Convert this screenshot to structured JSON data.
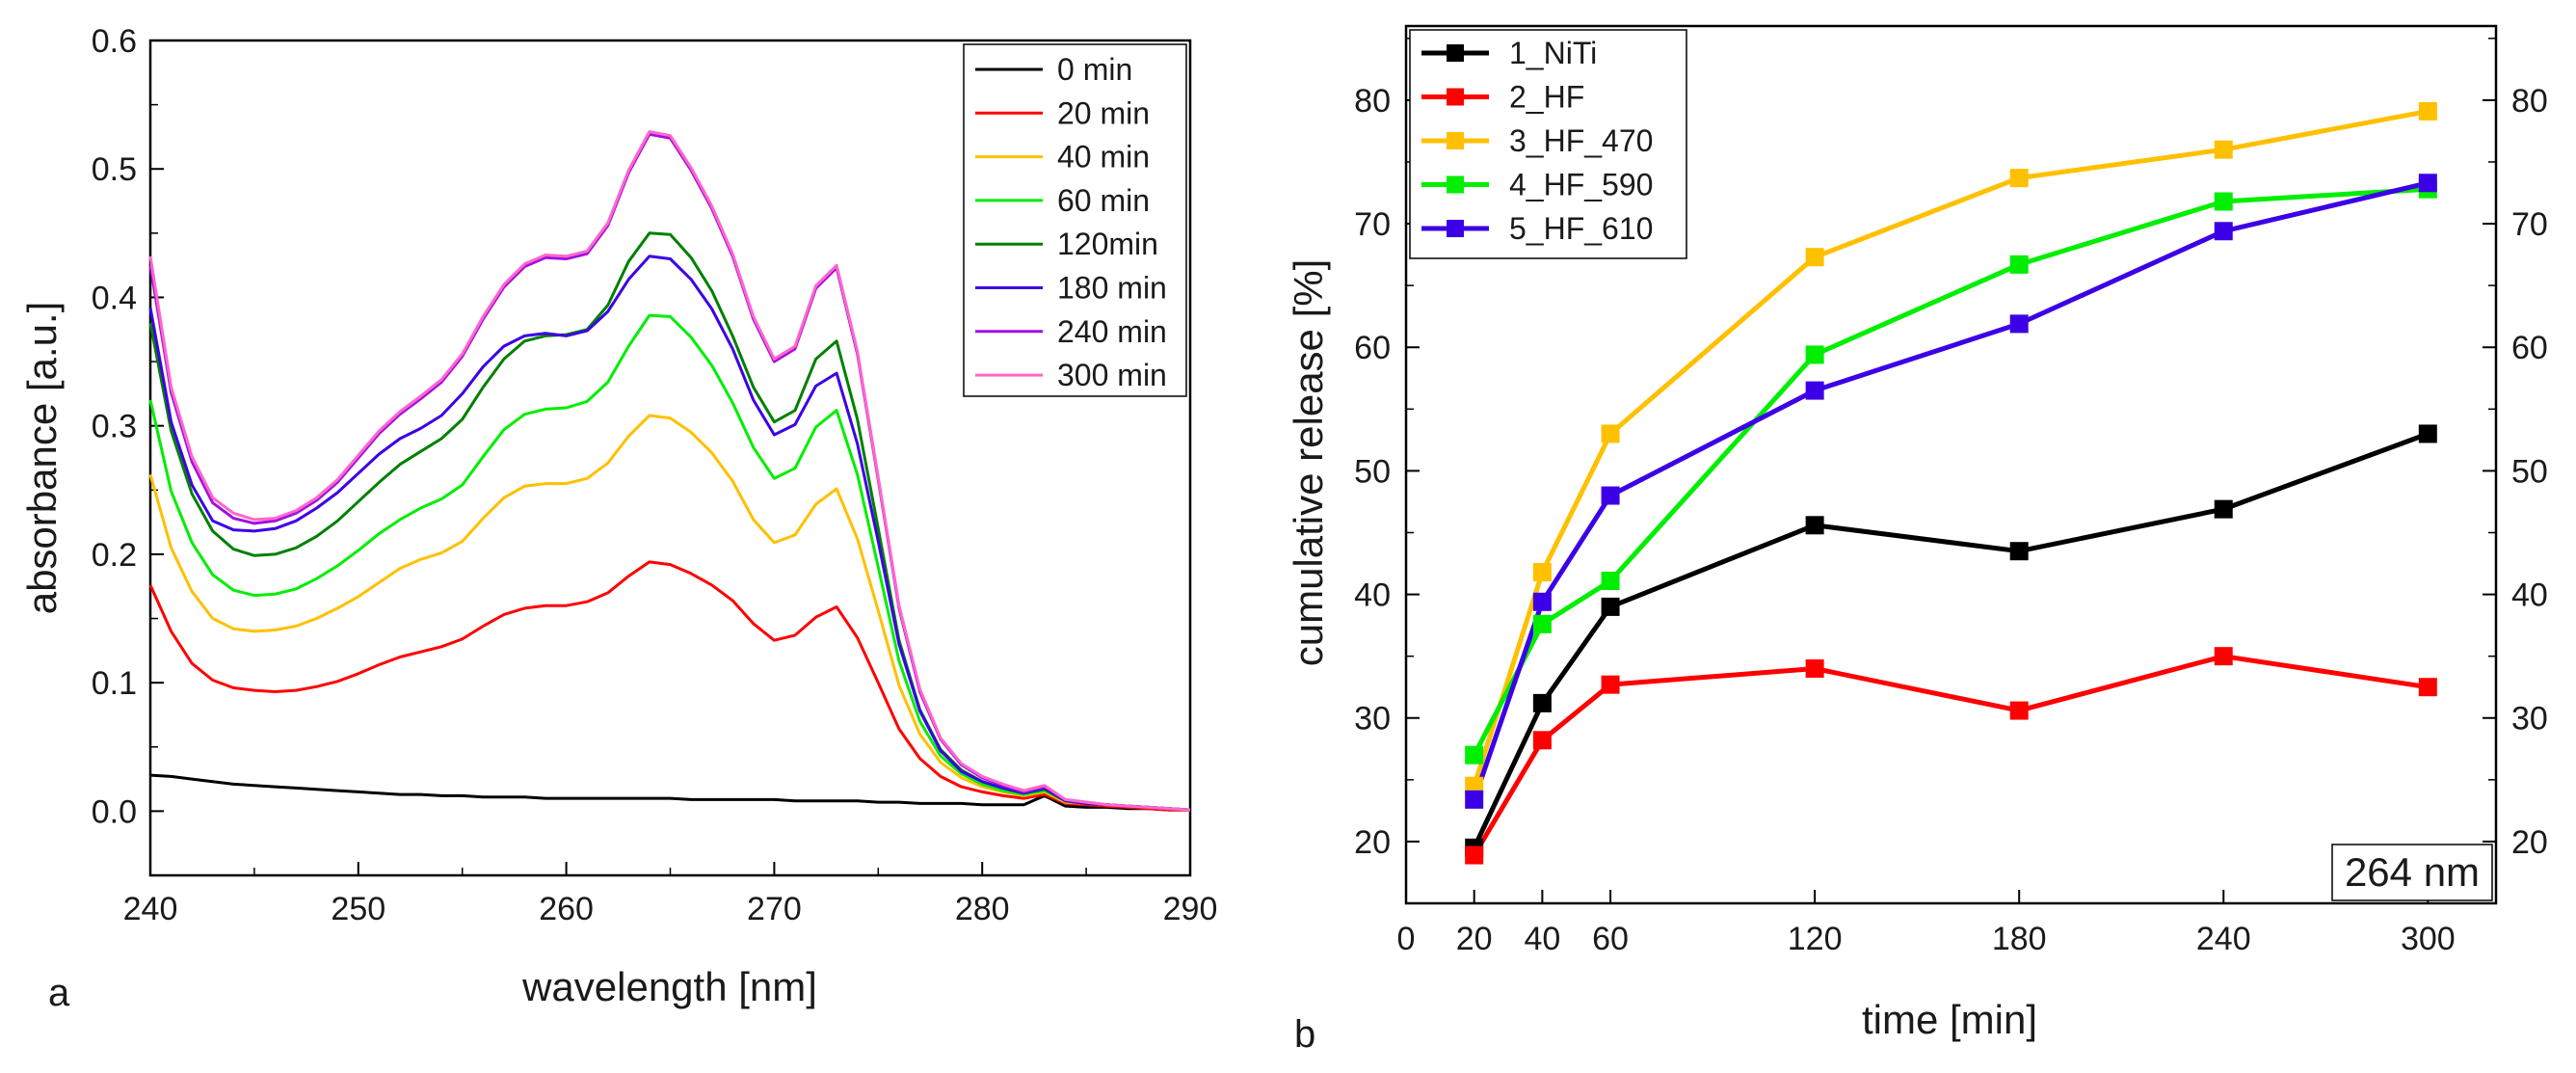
{
  "figure_panels": [
    "a",
    "b"
  ],
  "chart_data": [
    {
      "type": "line",
      "panel_label": "a",
      "title": "",
      "xlabel": "wavelength [nm]",
      "ylabel": "absorbance [a.u.]",
      "xlim": [
        240,
        290
      ],
      "ylim": [
        -0.05,
        0.6
      ],
      "xticks": [
        240,
        250,
        260,
        270,
        280,
        290
      ],
      "yticks": [
        0.0,
        0.1,
        0.2,
        0.3,
        0.4,
        0.5,
        0.6
      ],
      "ytick_labels": [
        "0.0",
        "0.1",
        "0.2",
        "0.3",
        "0.4",
        "0.5",
        "0.6"
      ],
      "grid": false,
      "legend_position": "top-right",
      "shared_x": [
        240,
        241,
        242,
        243,
        244,
        245,
        246,
        247,
        248,
        249,
        250,
        251,
        252,
        253,
        254,
        255,
        256,
        257,
        258,
        259,
        260,
        261,
        262,
        263,
        264,
        265,
        266,
        267,
        268,
        269,
        270,
        271,
        272,
        273,
        274,
        275,
        276,
        277,
        278,
        279,
        280,
        281,
        282,
        283,
        284,
        285,
        286,
        287,
        288,
        289,
        290
      ],
      "series": [
        {
          "name": "0 min",
          "color": "#000000",
          "values": [
            0.028,
            0.027,
            0.025,
            0.023,
            0.021,
            0.02,
            0.019,
            0.018,
            0.017,
            0.016,
            0.015,
            0.014,
            0.013,
            0.013,
            0.012,
            0.012,
            0.011,
            0.011,
            0.011,
            0.01,
            0.01,
            0.01,
            0.01,
            0.01,
            0.01,
            0.01,
            0.009,
            0.009,
            0.009,
            0.009,
            0.009,
            0.008,
            0.008,
            0.008,
            0.008,
            0.007,
            0.007,
            0.006,
            0.006,
            0.006,
            0.005,
            0.005,
            0.005,
            0.012,
            0.004,
            0.003,
            0.003,
            0.002,
            0.002,
            0.001,
            0.001
          ]
        },
        {
          "name": "20 min",
          "color": "#ff0000",
          "values": [
            0.176,
            0.14,
            0.115,
            0.102,
            0.096,
            0.094,
            0.093,
            0.094,
            0.097,
            0.101,
            0.107,
            0.114,
            0.12,
            0.124,
            0.128,
            0.134,
            0.144,
            0.153,
            0.158,
            0.16,
            0.16,
            0.163,
            0.17,
            0.183,
            0.194,
            0.192,
            0.185,
            0.176,
            0.164,
            0.146,
            0.133,
            0.137,
            0.151,
            0.159,
            0.135,
            0.1,
            0.064,
            0.041,
            0.027,
            0.019,
            0.015,
            0.012,
            0.01,
            0.013,
            0.006,
            0.005,
            0.004,
            0.003,
            0.002,
            0.001,
            0.001
          ]
        },
        {
          "name": "40 min",
          "color": "#ffc000",
          "values": [
            0.262,
            0.205,
            0.171,
            0.15,
            0.142,
            0.14,
            0.141,
            0.144,
            0.15,
            0.158,
            0.167,
            0.178,
            0.189,
            0.196,
            0.201,
            0.21,
            0.228,
            0.244,
            0.253,
            0.255,
            0.255,
            0.259,
            0.271,
            0.292,
            0.308,
            0.306,
            0.295,
            0.279,
            0.257,
            0.227,
            0.209,
            0.215,
            0.239,
            0.251,
            0.212,
            0.156,
            0.098,
            0.06,
            0.038,
            0.026,
            0.019,
            0.015,
            0.012,
            0.015,
            0.007,
            0.006,
            0.005,
            0.004,
            0.003,
            0.002,
            0.001
          ]
        },
        {
          "name": "60 min",
          "color": "#00ee00",
          "values": [
            0.32,
            0.249,
            0.209,
            0.184,
            0.172,
            0.168,
            0.169,
            0.173,
            0.181,
            0.191,
            0.203,
            0.216,
            0.227,
            0.236,
            0.243,
            0.254,
            0.276,
            0.297,
            0.309,
            0.313,
            0.314,
            0.319,
            0.334,
            0.362,
            0.386,
            0.385,
            0.369,
            0.347,
            0.318,
            0.283,
            0.259,
            0.267,
            0.299,
            0.312,
            0.262,
            0.19,
            0.117,
            0.07,
            0.043,
            0.029,
            0.021,
            0.016,
            0.013,
            0.016,
            0.008,
            0.006,
            0.005,
            0.004,
            0.003,
            0.002,
            0.001
          ]
        },
        {
          "name": "120min",
          "color": "#008000",
          "values": [
            0.38,
            0.296,
            0.247,
            0.218,
            0.204,
            0.199,
            0.2,
            0.205,
            0.214,
            0.226,
            0.241,
            0.256,
            0.27,
            0.28,
            0.29,
            0.305,
            0.33,
            0.352,
            0.366,
            0.37,
            0.371,
            0.375,
            0.394,
            0.428,
            0.45,
            0.449,
            0.431,
            0.405,
            0.37,
            0.33,
            0.303,
            0.312,
            0.352,
            0.366,
            0.305,
            0.22,
            0.133,
            0.079,
            0.048,
            0.032,
            0.023,
            0.018,
            0.014,
            0.017,
            0.008,
            0.006,
            0.005,
            0.004,
            0.003,
            0.002,
            0.001
          ]
        },
        {
          "name": "180 min",
          "color": "#3c00e6",
          "values": [
            0.392,
            0.303,
            0.254,
            0.226,
            0.219,
            0.218,
            0.22,
            0.226,
            0.236,
            0.248,
            0.263,
            0.278,
            0.29,
            0.298,
            0.308,
            0.325,
            0.346,
            0.362,
            0.37,
            0.372,
            0.37,
            0.374,
            0.389,
            0.414,
            0.432,
            0.43,
            0.414,
            0.391,
            0.36,
            0.32,
            0.293,
            0.301,
            0.331,
            0.341,
            0.286,
            0.21,
            0.13,
            0.078,
            0.047,
            0.031,
            0.023,
            0.018,
            0.014,
            0.018,
            0.008,
            0.006,
            0.005,
            0.004,
            0.003,
            0.002,
            0.001
          ]
        },
        {
          "name": "240 min",
          "color": "#a010e0",
          "values": [
            0.425,
            0.326,
            0.272,
            0.24,
            0.228,
            0.224,
            0.226,
            0.232,
            0.242,
            0.256,
            0.275,
            0.294,
            0.309,
            0.321,
            0.334,
            0.354,
            0.383,
            0.408,
            0.424,
            0.431,
            0.43,
            0.434,
            0.456,
            0.497,
            0.527,
            0.524,
            0.499,
            0.469,
            0.432,
            0.383,
            0.35,
            0.36,
            0.407,
            0.423,
            0.356,
            0.258,
            0.158,
            0.093,
            0.056,
            0.036,
            0.026,
            0.02,
            0.015,
            0.019,
            0.009,
            0.007,
            0.005,
            0.004,
            0.003,
            0.002,
            0.001
          ]
        },
        {
          "name": "300 min",
          "color": "#ff66cc",
          "values": [
            0.432,
            0.33,
            0.276,
            0.244,
            0.232,
            0.227,
            0.228,
            0.234,
            0.244,
            0.258,
            0.277,
            0.296,
            0.311,
            0.323,
            0.336,
            0.356,
            0.385,
            0.41,
            0.426,
            0.433,
            0.432,
            0.436,
            0.458,
            0.499,
            0.529,
            0.526,
            0.501,
            0.471,
            0.434,
            0.385,
            0.352,
            0.362,
            0.409,
            0.425,
            0.358,
            0.26,
            0.16,
            0.095,
            0.057,
            0.037,
            0.027,
            0.021,
            0.016,
            0.02,
            0.009,
            0.007,
            0.005,
            0.004,
            0.003,
            0.002,
            0.001
          ]
        }
      ]
    },
    {
      "type": "line",
      "panel_label": "b",
      "title": "",
      "xlabel": "time [min]",
      "ylabel": "cumulative release [%]",
      "xlim": [
        0,
        320
      ],
      "ylim": [
        15,
        86
      ],
      "xticks": [
        0,
        20,
        40,
        60,
        120,
        180,
        240,
        300
      ],
      "yticks": [
        20,
        30,
        40,
        50,
        60,
        70,
        80
      ],
      "right_yticks": [
        20,
        30,
        40,
        50,
        60,
        70,
        80
      ],
      "grid": false,
      "legend_position": "top-left",
      "annotation": "264 nm",
      "marker": "square",
      "x": [
        20,
        40,
        60,
        120,
        180,
        240,
        300
      ],
      "series": [
        {
          "name": "1_NiTi",
          "color": "#000000",
          "values": [
            19.5,
            31.2,
            39.0,
            45.6,
            43.5,
            46.9,
            53.0
          ]
        },
        {
          "name": "2_HF",
          "color": "#ff0000",
          "values": [
            18.9,
            28.2,
            32.7,
            34.0,
            30.6,
            35.0,
            32.5
          ]
        },
        {
          "name": "3_HF_470",
          "color": "#ffc000",
          "values": [
            24.5,
            41.8,
            53.0,
            67.3,
            73.7,
            76.0,
            79.1
          ]
        },
        {
          "name": "4_HF_590",
          "color": "#00ee00",
          "values": [
            27.0,
            37.6,
            41.1,
            59.4,
            66.7,
            71.8,
            72.8
          ]
        },
        {
          "name": "5_HF_610",
          "color": "#3c00e6",
          "values": [
            23.4,
            39.4,
            48.0,
            56.5,
            61.9,
            69.4,
            73.3
          ]
        }
      ]
    }
  ]
}
